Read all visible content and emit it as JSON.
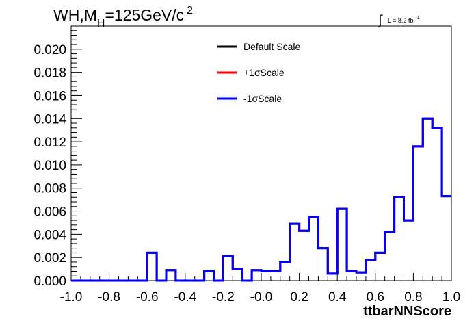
{
  "chart_data": {
    "type": "line",
    "title_main": "WH,M",
    "title_sub": "H",
    "title_rest": "=125GeV/c",
    "title_sup": "2",
    "lumi_integral": "∫",
    "lumi_text": "L = 8.2 fb",
    "lumi_sup": "-1",
    "xlabel": "ttbarNNScore",
    "ylabel": "",
    "xlim": [
      -1.0,
      1.0
    ],
    "ylim": [
      0.0,
      0.022
    ],
    "x_ticks": [
      "-1.0",
      "-0.8",
      "-0.6",
      "-0.4",
      "-0.2",
      "-0.0",
      "0.2",
      "0.4",
      "0.6",
      "0.8",
      "1.0"
    ],
    "y_ticks": [
      "0.000",
      "0.002",
      "0.004",
      "0.006",
      "0.008",
      "0.010",
      "0.012",
      "0.014",
      "0.016",
      "0.018",
      "0.020"
    ],
    "legend_position": "top-center",
    "bin_edges_start": -1.0,
    "bin_width": 0.05,
    "series": [
      {
        "name": "Default Scale",
        "color": "#000000",
        "values": [
          0,
          0,
          0,
          0,
          0,
          0,
          0,
          0,
          0.0024,
          0,
          0.0009,
          0,
          0,
          0,
          0.0008,
          0,
          0.0021,
          0.001,
          0,
          0.0009,
          0.0008,
          0.0008,
          0.0016,
          0.0049,
          0.0043,
          0.0055,
          0.0028,
          0.0006,
          0.0062,
          0.0008,
          0.0007,
          0.0018,
          0.0024,
          0.0042,
          0.0072,
          0.0052,
          0.0116,
          0.014,
          0.0132,
          0.0073
        ]
      },
      {
        "name": "+1σScale",
        "color": "#ff0000",
        "values": [
          0,
          0,
          0,
          0,
          0,
          0,
          0,
          0,
          0.0024,
          0,
          0.0009,
          0,
          0,
          0,
          0.0008,
          0,
          0.0021,
          0.001,
          0,
          0.0009,
          0.0008,
          0.0008,
          0.0016,
          0.0049,
          0.0043,
          0.0055,
          0.0028,
          0.0006,
          0.0062,
          0.0008,
          0.0007,
          0.0018,
          0.0024,
          0.0042,
          0.0072,
          0.0052,
          0.0116,
          0.014,
          0.0132,
          0.0073
        ]
      },
      {
        "name": "-1σScale",
        "color": "#0000ff",
        "values": [
          0,
          0,
          0,
          0,
          0,
          0,
          0,
          0,
          0.0024,
          0,
          0.0009,
          0,
          0,
          0,
          0.0008,
          0,
          0.0021,
          0.001,
          0,
          0.0009,
          0.0008,
          0.0008,
          0.0016,
          0.0049,
          0.0043,
          0.0055,
          0.0028,
          0.0006,
          0.0062,
          0.0008,
          0.0007,
          0.0018,
          0.0024,
          0.0042,
          0.0072,
          0.0052,
          0.0116,
          0.014,
          0.0132,
          0.0073
        ]
      }
    ]
  }
}
